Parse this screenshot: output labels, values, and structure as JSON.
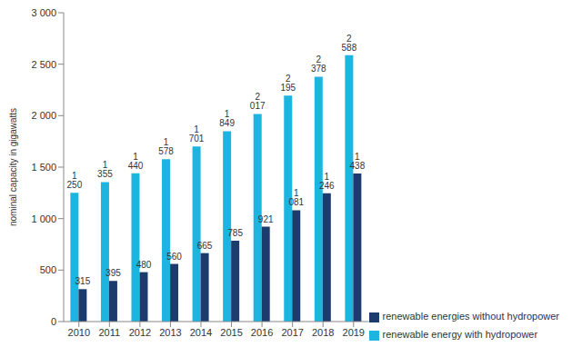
{
  "chart_data": {
    "type": "bar",
    "y_label": "nominal capacity in gigawatts",
    "categories": [
      "2010",
      "2011",
      "2012",
      "2013",
      "2014",
      "2015",
      "2016",
      "2017",
      "2018",
      "2019"
    ],
    "series": [
      {
        "name": "renewable energy with hydropower",
        "color": "#1bb5e0",
        "values": [
          1250,
          1355,
          1440,
          1578,
          1701,
          1849,
          2017,
          2195,
          2378,
          2588
        ],
        "value_labels": [
          "1 250",
          "1 355",
          "1 440",
          "1 578",
          "1 701",
          "1 849",
          "2 017",
          "2 195",
          "2 378",
          "2 588"
        ]
      },
      {
        "name": "renewable energies without hydropower",
        "color": "#1c3c6e",
        "values": [
          315,
          395,
          480,
          560,
          665,
          785,
          921,
          1081,
          1246,
          1438
        ],
        "value_labels": [
          "315",
          "395",
          "480",
          "560",
          "665",
          "785",
          "921",
          "1 081",
          "1 246",
          "1 438"
        ]
      }
    ],
    "ylim": [
      0,
      3000
    ],
    "yticks": [
      0,
      500,
      {
        "value": 1000,
        "label": "1 000"
      },
      {
        "value": 1500,
        "label": "1 500"
      },
      {
        "value": 2000,
        "label": "2 000"
      },
      {
        "value": 2500,
        "label": "2 500"
      },
      {
        "value": 3000,
        "label": "3 000"
      }
    ],
    "grid": false,
    "data_labels": true,
    "legend": "bottom right"
  }
}
